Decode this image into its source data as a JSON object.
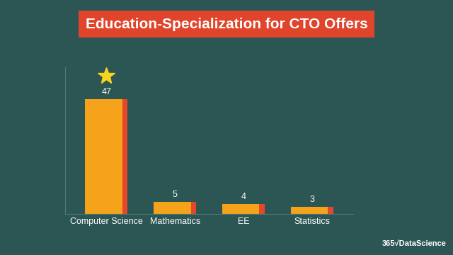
{
  "chart_data": {
    "type": "bar",
    "title": "Education-Specialization for CTO Offers",
    "categories": [
      "Computer Science",
      "Mathematics",
      "EE",
      "Statistics"
    ],
    "values": [
      47,
      5,
      4,
      3
    ],
    "color": "#f5a31a",
    "ylim": [
      0,
      60
    ],
    "yticks": [],
    "tick_labels": "x",
    "data_labels": true,
    "annotations": [
      "365√DataScience"
    ]
  }
}
